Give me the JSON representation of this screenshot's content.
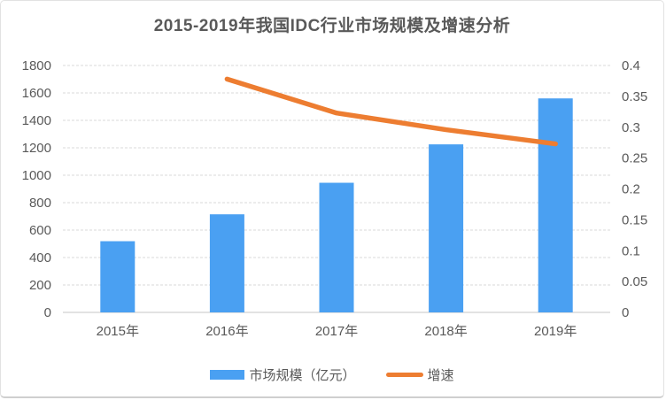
{
  "title": "2015-2019年我国IDC行业市场规模及增速分析",
  "chart_data": {
    "type": "bar+line combo",
    "categories": [
      "2015年",
      "2016年",
      "2017年",
      "2018年",
      "2019年"
    ],
    "series": [
      {
        "name": "市场规模（亿元）",
        "type": "bar",
        "axis": "left",
        "color": "#4AA0F2",
        "values": [
          519,
          715,
          945,
          1225,
          1560
        ]
      },
      {
        "name": "增速",
        "type": "line",
        "axis": "right",
        "color": "#ED7D31",
        "values": [
          null,
          0.378,
          0.323,
          0.296,
          0.273
        ]
      }
    ],
    "left_axis": {
      "min": 0,
      "max": 1800,
      "step": 200,
      "ticks": [
        "0",
        "200",
        "400",
        "600",
        "800",
        "1000",
        "1200",
        "1400",
        "1600",
        "1800"
      ]
    },
    "right_axis": {
      "min": 0,
      "max": 0.4,
      "step": 0.05,
      "ticks": [
        "0",
        "0.05",
        "0.1",
        "0.15",
        "0.2",
        "0.25",
        "0.3",
        "0.35",
        "0.4"
      ]
    },
    "grid": true,
    "legend_position": "bottom"
  },
  "legend": {
    "items": [
      {
        "label": "市场规模（亿元）",
        "swatch": "bar",
        "color": "#4AA0F2"
      },
      {
        "label": "增速",
        "swatch": "line",
        "color": "#ED7D31"
      }
    ]
  },
  "colors": {
    "bar": "#4AA0F2",
    "line": "#ED7D31",
    "title_text": "#595959",
    "axis_text": "#595959",
    "gridline": "#DADADA",
    "axis_line": "#C6C6C6",
    "background": "#FFFFFF",
    "border": "#E2E2E2"
  }
}
